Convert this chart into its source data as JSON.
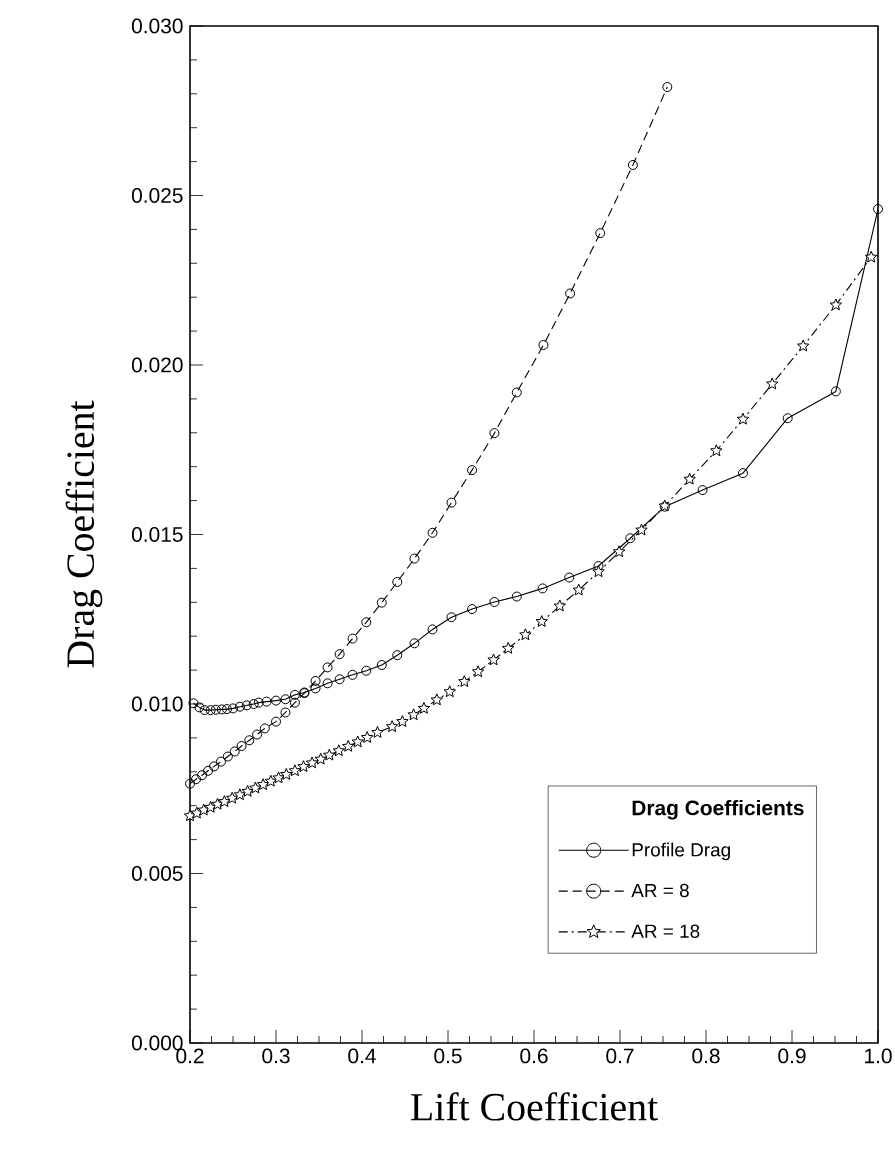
{
  "chart_data": {
    "type": "line",
    "xlabel": "Lift Coefficient",
    "ylabel": "Drag Coefficient",
    "legend_title": "Drag Coefficients",
    "legend": "bottom right",
    "grid": false,
    "xlim": [
      0.2,
      1.0
    ],
    "ylim": [
      0.0,
      0.03
    ],
    "xticks": [
      {
        "value": 0.2,
        "label": "0.2"
      },
      {
        "value": 0.3,
        "label": "0.3"
      },
      {
        "value": 0.4,
        "label": "0.4"
      },
      {
        "value": 0.5,
        "label": "0.5"
      },
      {
        "value": 0.6,
        "label": "0.6"
      },
      {
        "value": 0.7,
        "label": "0.7"
      },
      {
        "value": 0.8,
        "label": "0.8"
      },
      {
        "value": 0.9,
        "label": "0.9"
      },
      {
        "value": 1.0,
        "label": "1.0"
      }
    ],
    "yticks": [
      {
        "value": 0.0,
        "label": "0.000"
      },
      {
        "value": 0.005,
        "label": "0.005"
      },
      {
        "value": 0.01,
        "label": "0.010"
      },
      {
        "value": 0.015,
        "label": "0.015"
      },
      {
        "value": 0.02,
        "label": "0.020"
      },
      {
        "value": 0.025,
        "label": "0.025"
      },
      {
        "value": 0.03,
        "label": "0.030"
      }
    ],
    "series": [
      {
        "name": "Profile Drag",
        "color": "#000000",
        "marker": "circle",
        "line_style": "solid",
        "x": [
          0.204,
          0.211,
          0.217,
          0.224,
          0.23,
          0.237,
          0.243,
          0.25,
          0.258,
          0.266,
          0.274,
          0.28,
          0.289,
          0.3,
          0.311,
          0.322,
          0.333,
          0.346,
          0.36,
          0.374,
          0.389,
          0.405,
          0.423,
          0.441,
          0.461,
          0.482,
          0.504,
          0.528,
          0.554,
          0.58,
          0.61,
          0.641,
          0.675,
          0.712,
          0.752,
          0.796,
          0.843,
          0.895,
          0.951,
          1.0
        ],
        "values": [
          0.01002,
          0.0099,
          0.00982,
          0.00982,
          0.00983,
          0.00984,
          0.00985,
          0.00987,
          0.00992,
          0.00996,
          0.01,
          0.01004,
          0.01007,
          0.0101,
          0.01014,
          0.01027,
          0.01034,
          0.01046,
          0.01061,
          0.01073,
          0.01086,
          0.01098,
          0.01115,
          0.01144,
          0.01179,
          0.0122,
          0.01256,
          0.0128,
          0.01301,
          0.01317,
          0.01341,
          0.01373,
          0.01407,
          0.01489,
          0.01582,
          0.01631,
          0.01681,
          0.01843,
          0.01922,
          0.0246
        ]
      },
      {
        "name": "AR = 8",
        "color": "#000000",
        "marker": "circle",
        "line_style": "dashed",
        "x": [
          0.2,
          0.207,
          0.214,
          0.221,
          0.228,
          0.236,
          0.244,
          0.252,
          0.26,
          0.269,
          0.278,
          0.287,
          0.3,
          0.311,
          0.322,
          0.333,
          0.346,
          0.36,
          0.374,
          0.389,
          0.405,
          0.423,
          0.441,
          0.461,
          0.482,
          0.504,
          0.528,
          0.554,
          0.58,
          0.611,
          0.642,
          0.677,
          0.715,
          0.755
        ],
        "values": [
          0.00765,
          0.00778,
          0.0079,
          0.00803,
          0.00816,
          0.0083,
          0.00845,
          0.0086,
          0.00876,
          0.00893,
          0.0091,
          0.00928,
          0.00948,
          0.00975,
          0.01004,
          0.01032,
          0.01068,
          0.01108,
          0.01147,
          0.01193,
          0.01241,
          0.01299,
          0.0136,
          0.01429,
          0.01505,
          0.01594,
          0.0169,
          0.01799,
          0.01919,
          0.02059,
          0.02211,
          0.02389,
          0.0259,
          0.0282
        ]
      },
      {
        "name": "AR = 18",
        "color": "#000000",
        "marker": "star",
        "line_style": "dashdot",
        "x": [
          0.2,
          0.208,
          0.216,
          0.224,
          0.232,
          0.24,
          0.249,
          0.258,
          0.267,
          0.276,
          0.285,
          0.294,
          0.303,
          0.312,
          0.322,
          0.332,
          0.342,
          0.352,
          0.362,
          0.373,
          0.384,
          0.395,
          0.406,
          0.418,
          0.435,
          0.447,
          0.46,
          0.472,
          0.487,
          0.502,
          0.519,
          0.535,
          0.553,
          0.57,
          0.59,
          0.609,
          0.63,
          0.652,
          0.675,
          0.699,
          0.725,
          0.752,
          0.781,
          0.812,
          0.843,
          0.877,
          0.913,
          0.951,
          0.992
        ],
        "values": [
          0.0067,
          0.00678,
          0.00687,
          0.00695,
          0.00704,
          0.00712,
          0.00722,
          0.00732,
          0.00742,
          0.00752,
          0.00762,
          0.00772,
          0.00782,
          0.00792,
          0.00803,
          0.00815,
          0.00826,
          0.00837,
          0.00849,
          0.00862,
          0.00875,
          0.00888,
          0.00901,
          0.00916,
          0.00933,
          0.00948,
          0.00968,
          0.00987,
          0.01012,
          0.01036,
          0.01066,
          0.01095,
          0.0113,
          0.01164,
          0.01204,
          0.01243,
          0.01289,
          0.01336,
          0.0139,
          0.01449,
          0.01513,
          0.01584,
          0.01663,
          0.01747,
          0.0184,
          0.01944,
          0.02056,
          0.02177,
          0.02318
        ]
      }
    ]
  }
}
